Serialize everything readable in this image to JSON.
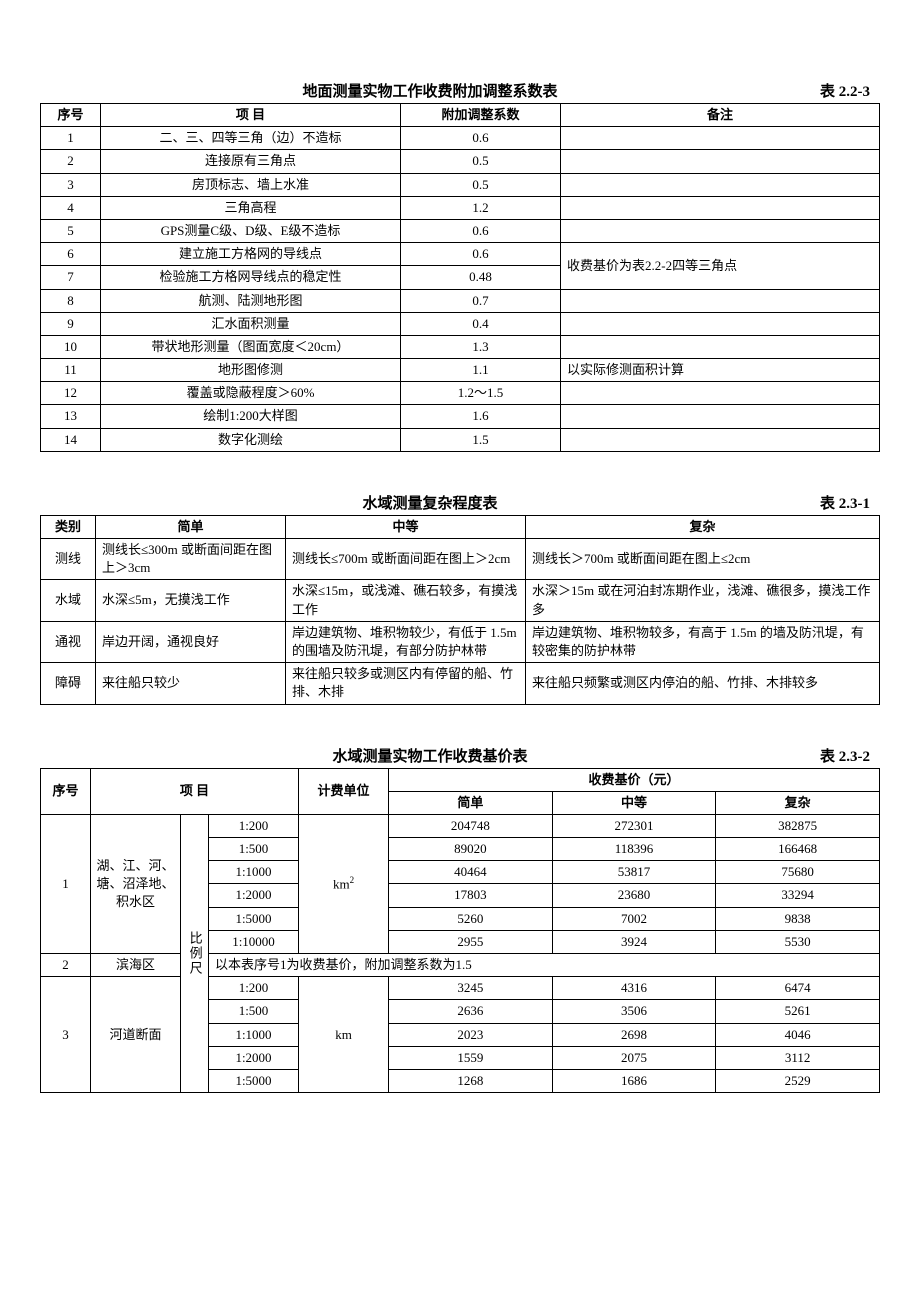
{
  "table1": {
    "title": "地面测量实物工作收费附加调整系数表",
    "table_no": "表 2.2-3",
    "headers": [
      "序号",
      "项    目",
      "附加调整系数",
      "备注"
    ],
    "col_widths": [
      "60px",
      "300px",
      "160px",
      "auto"
    ],
    "rows": [
      {
        "no": "1",
        "item": "二、三、四等三角（边）不造标",
        "coef": "0.6",
        "remark": ""
      },
      {
        "no": "2",
        "item": "连接原有三角点",
        "coef": "0.5",
        "remark": ""
      },
      {
        "no": "3",
        "item": "房顶标志、墙上水准",
        "coef": "0.5",
        "remark": ""
      },
      {
        "no": "4",
        "item": "三角高程",
        "coef": "1.2",
        "remark": ""
      },
      {
        "no": "5",
        "item": "GPS测量C级、D级、E级不造标",
        "coef": "0.6",
        "remark": ""
      },
      {
        "no": "6",
        "item": "建立施工方格网的导线点",
        "coef": "0.6",
        "remark": ""
      },
      {
        "no": "7",
        "item": "检验施工方格网导线点的稳定性",
        "coef": "0.48",
        "remark": ""
      },
      {
        "no": "8",
        "item": "航测、陆测地形图",
        "coef": "0.7",
        "remark": ""
      },
      {
        "no": "9",
        "item": "汇水面积测量",
        "coef": "0.4",
        "remark": ""
      },
      {
        "no": "10",
        "item": "带状地形测量（图面宽度＜20cm）",
        "coef": "1.3",
        "remark": ""
      },
      {
        "no": "11",
        "item": "地形图修测",
        "coef": "1.1",
        "remark": "以实际修测面积计算"
      },
      {
        "no": "12",
        "item": "覆盖或隐蔽程度＞60%",
        "coef": "1.2～1.5",
        "remark": ""
      },
      {
        "no": "13",
        "item": "绘制1:200大样图",
        "coef": "1.6",
        "remark": ""
      },
      {
        "no": "14",
        "item": "数字化测绘",
        "coef": "1.5",
        "remark": ""
      }
    ],
    "merged_remark": "收费基价为表2.2-2四等三角点",
    "merged_remark_start": 5,
    "merged_remark_span": 2
  },
  "table2": {
    "title": "水域测量复杂程度表",
    "table_no": "表 2.3-1",
    "headers": [
      "类别",
      "简单",
      "中等",
      "复杂"
    ],
    "col_widths": [
      "55px",
      "190px",
      "240px",
      "auto"
    ],
    "rows": [
      {
        "cat": "测线",
        "simple": "测线长≤300m 或断面间距在图上＞3cm",
        "mid": "测线长≤700m 或断面间距在图上＞2cm",
        "complex": "测线长＞700m 或断面间距在图上≤2cm"
      },
      {
        "cat": "水域",
        "simple": "水深≤5m，无摸浅工作",
        "mid": "水深≤15m，或浅滩、礁石较多，有摸浅工作",
        "complex": "水深＞15m 或在河泊封冻期作业，浅滩、礁很多，摸浅工作多"
      },
      {
        "cat": "通视",
        "simple": "岸边开阔，通视良好",
        "mid": "岸边建筑物、堆积物较少，有低于 1.5m 的围墙及防汛堤，有部分防护林带",
        "complex": "岸边建筑物、堆积物较多，有高于 1.5m 的墙及防汛堤，有较密集的防护林带"
      },
      {
        "cat": "障碍",
        "simple": "来往船只较少",
        "mid": "来往船只较多或测区内有停留的船、竹排、木排",
        "complex": "来往船只频繁或测区内停泊的船、竹排、木排较多"
      }
    ]
  },
  "table3": {
    "title": "水域测量实物工作收费基价表",
    "table_no": "表 2.3-2",
    "head": {
      "seq": "序号",
      "item": "项  目",
      "unit": "计费单位",
      "price_group": "收费基价（元）",
      "simple": "简单",
      "mid": "中等",
      "complex": "复杂"
    },
    "scale_label": "比例尺",
    "group1": {
      "no": "1",
      "name": "湖、江、河、塘、沼泽地、积水区",
      "unit": "km²",
      "scales": [
        "1:200",
        "1:500",
        "1:1000",
        "1:2000",
        "1:5000",
        "1:10000"
      ],
      "rows": [
        [
          "204748",
          "272301",
          "382875"
        ],
        [
          "89020",
          "118396",
          "166468"
        ],
        [
          "40464",
          "53817",
          "75680"
        ],
        [
          "17803",
          "23680",
          "33294"
        ],
        [
          "5260",
          "7002",
          "9838"
        ],
        [
          "2955",
          "3924",
          "5530"
        ]
      ]
    },
    "group2": {
      "no": "2",
      "name": "滨海区",
      "note": "以本表序号1为收费基价，附加调整系数为1.5"
    },
    "group3": {
      "no": "3",
      "name": "河道断面",
      "unit": "km",
      "scales": [
        "1:200",
        "1:500",
        "1:1000",
        "1:2000",
        "1:5000"
      ],
      "rows": [
        [
          "3245",
          "4316",
          "6474"
        ],
        [
          "2636",
          "3506",
          "5261"
        ],
        [
          "2023",
          "2698",
          "4046"
        ],
        [
          "1559",
          "2075",
          "3112"
        ],
        [
          "1268",
          "1686",
          "2529"
        ]
      ]
    },
    "col_widths": [
      "50px",
      "90px",
      "28px",
      "90px",
      "90px",
      "auto",
      "auto",
      "auto"
    ]
  }
}
